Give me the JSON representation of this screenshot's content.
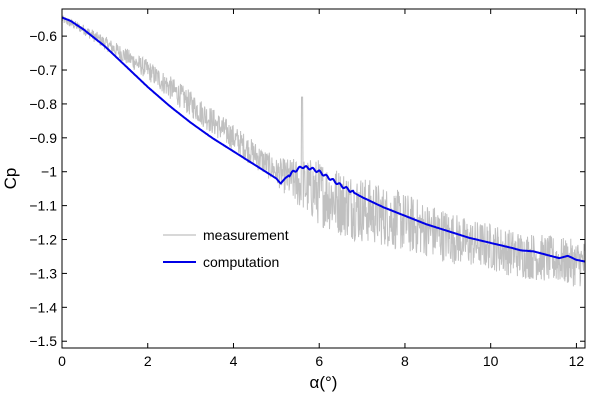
{
  "chart_data": {
    "type": "line",
    "title": "",
    "xlabel": "α(°)",
    "ylabel": "Cp",
    "xlim": [
      0,
      12.2
    ],
    "ylim": [
      -1.52,
      -0.52
    ],
    "xticks": [
      0,
      2,
      4,
      6,
      8,
      10,
      12
    ],
    "xtick_labels": [
      "0",
      "2",
      "4",
      "6",
      "8",
      "10",
      "12"
    ],
    "yticks": [
      -0.6,
      -0.7,
      -0.8,
      -0.9,
      -1,
      -1.1,
      -1.2,
      -1.3,
      -1.4,
      -1.5
    ],
    "ytick_labels": [
      "−0.6",
      "−0.7",
      "−0.8",
      "−0.9",
      "−1",
      "−1.1",
      "−1.2",
      "−1.3",
      "−1.4",
      "−1.5"
    ],
    "grid": false,
    "legend_position": "middle-left",
    "series": [
      {
        "name": "measurement",
        "color": "#c0c0c0",
        "style": "noisy-band",
        "x": [
          0,
          0.5,
          1,
          1.5,
          2,
          2.5,
          3,
          3.5,
          4,
          4.5,
          5,
          5.3,
          5.6,
          6,
          6.5,
          7,
          7.5,
          8,
          8.5,
          9,
          9.5,
          10,
          10.5,
          11,
          11.5,
          12,
          12.2
        ],
        "y": [
          -0.55,
          -0.58,
          -0.62,
          -0.66,
          -0.7,
          -0.75,
          -0.8,
          -0.85,
          -0.9,
          -0.95,
          -1.0,
          -1.02,
          -1.04,
          -1.06,
          -1.09,
          -1.11,
          -1.13,
          -1.15,
          -1.17,
          -1.19,
          -1.21,
          -1.22,
          -1.24,
          -1.25,
          -1.26,
          -1.27,
          -1.27
        ],
        "spread": [
          0.012,
          0.015,
          0.02,
          0.025,
          0.03,
          0.035,
          0.038,
          0.04,
          0.04,
          0.04,
          0.04,
          0.06,
          0.08,
          0.1,
          0.1,
          0.1,
          0.09,
          0.09,
          0.08,
          0.08,
          0.07,
          0.07,
          0.07,
          0.07,
          0.07,
          0.07,
          0.07
        ]
      },
      {
        "name": "computation",
        "color": "#0000e6",
        "style": "solid",
        "x": [
          0,
          0.2,
          0.5,
          1,
          1.5,
          2,
          2.5,
          3,
          3.5,
          4,
          4.5,
          5,
          5.1,
          5.2,
          5.4,
          5.6,
          5.8,
          6,
          6.5,
          7,
          7.5,
          8,
          8.5,
          9,
          9.5,
          10,
          10.5,
          10.7,
          11,
          11.3,
          11.6,
          11.8,
          12,
          12.2
        ],
        "y": [
          -0.545,
          -0.555,
          -0.58,
          -0.63,
          -0.69,
          -0.75,
          -0.805,
          -0.855,
          -0.9,
          -0.94,
          -0.98,
          -1.02,
          -1.035,
          -1.02,
          -1.0,
          -0.985,
          -0.99,
          -1.0,
          -1.04,
          -1.075,
          -1.105,
          -1.13,
          -1.155,
          -1.175,
          -1.195,
          -1.21,
          -1.225,
          -1.232,
          -1.235,
          -1.245,
          -1.255,
          -1.248,
          -1.26,
          -1.265
        ]
      }
    ]
  }
}
